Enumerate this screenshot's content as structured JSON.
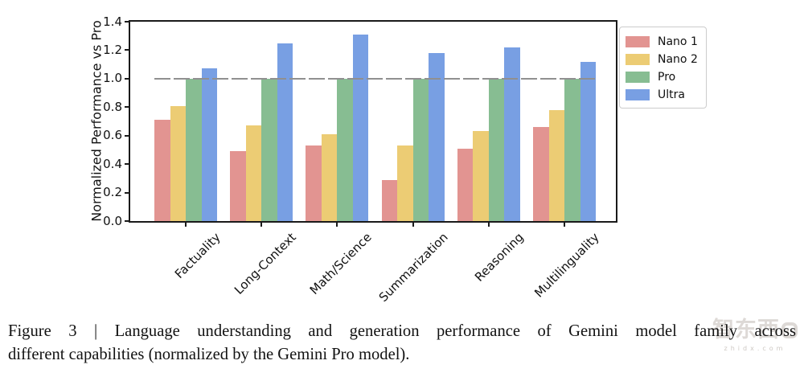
{
  "chart_data": {
    "type": "bar",
    "title": "",
    "categories": [
      "Factuality",
      "Long-Context",
      "Math/Science",
      "Summarization",
      "Reasoning",
      "Multilinguality"
    ],
    "series": [
      {
        "name": "Nano 1",
        "color": "#E29491",
        "values": [
          0.71,
          0.49,
          0.53,
          0.29,
          0.51,
          0.66
        ]
      },
      {
        "name": "Nano 2",
        "color": "#ECCC74",
        "values": [
          0.81,
          0.67,
          0.61,
          0.53,
          0.63,
          0.78
        ]
      },
      {
        "name": "Pro",
        "color": "#87BD92",
        "values": [
          1.0,
          1.0,
          1.0,
          1.0,
          1.0,
          1.0
        ]
      },
      {
        "name": "Ultra",
        "color": "#789FE3",
        "values": [
          1.07,
          1.25,
          1.31,
          1.18,
          1.22,
          1.12
        ]
      }
    ],
    "xlabel": "",
    "ylabel": "Normalized Performance vs Pro",
    "ylim": [
      0,
      1.4
    ],
    "ytick_step": 0.2,
    "yticks": [
      "0.0",
      "0.2",
      "0.4",
      "0.6",
      "0.8",
      "1.0",
      "1.2",
      "1.4"
    ],
    "reference_line_y": 1.0,
    "grid": "dashed gray reference line at y=1.0 only, spanning bar region",
    "legend_position": "outside upper right"
  },
  "caption": {
    "line1": "Figure 3 | Language understanding and generation performance of Gemini model family across",
    "line2": "different capabilities (normalized by the Gemini Pro model)."
  },
  "watermark": {
    "logo_text": "智东西",
    "domain": "zhidx.com"
  },
  "colors": {
    "axis_spine": "#1a1a1a",
    "reference_line": "#909090",
    "legend_border": "#cccccc",
    "caption_text": "#121212"
  }
}
